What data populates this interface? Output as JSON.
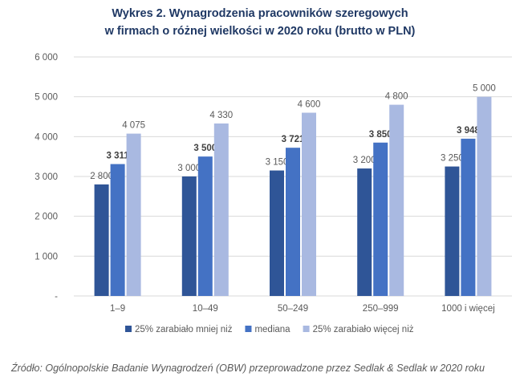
{
  "colors": {
    "title": "#1F3864",
    "series": [
      "#2F5597",
      "#4472C4",
      "#A9B9E1"
    ],
    "axis_text": "#595959",
    "gridline": "#D9D9D9",
    "background": "#FFFFFF"
  },
  "source_text": "Źródło: Ogólnopolskie Badanie Wynagrodzeń (OBW) przeprowadzone przez Sedlak & Sedlak w 2020 roku",
  "chart_data": {
    "type": "bar",
    "title": "Wykres 2. Wynagrodzenia pracowników szeregowych",
    "subtitle": "w firmach o różnej wielkości w 2020 roku (brutto w PLN)",
    "categories": [
      "1–9",
      "10–49",
      "50–249",
      "250–999",
      "1000 i więcej"
    ],
    "series": [
      {
        "name": "25% zarabiało mniej niż",
        "values": [
          2800,
          3000,
          3150,
          3200,
          3250
        ],
        "labels": [
          "2 800",
          "3 000",
          "3 150",
          "3 200",
          "3 250"
        ],
        "label_bold": false
      },
      {
        "name": "mediana",
        "values": [
          3311,
          3500,
          3721,
          3850,
          3948
        ],
        "labels": [
          "3 311",
          "3 500",
          "3 721",
          "3 850",
          "3 948"
        ],
        "label_bold": true
      },
      {
        "name": "25% zarabiało więcej niż",
        "values": [
          4075,
          4330,
          4600,
          4800,
          5000
        ],
        "labels": [
          "4 075",
          "4 330",
          "4 600",
          "4 800",
          "5 000"
        ],
        "label_bold": false
      }
    ],
    "ylim": [
      0,
      6000
    ],
    "yticks": [
      0,
      1000,
      2000,
      3000,
      4000,
      5000,
      6000
    ],
    "ytick_labels": [
      "-",
      "1 000",
      "2 000",
      "3 000",
      "4 000",
      "5 000",
      "6 000"
    ],
    "xlabel": "",
    "ylabel": "",
    "grid": true,
    "legend_position": "bottom"
  }
}
